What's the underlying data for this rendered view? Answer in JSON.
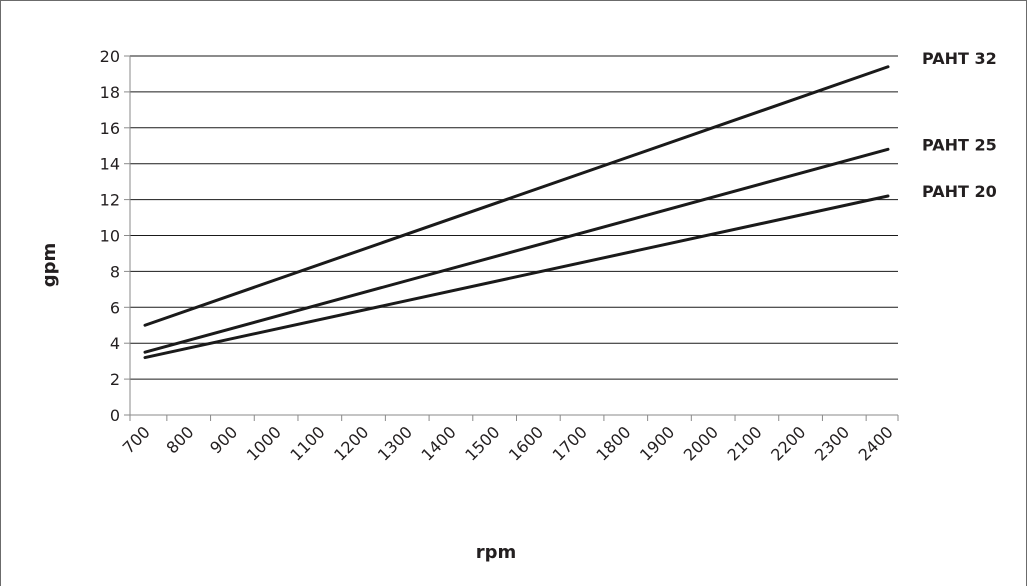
{
  "chart_data": {
    "type": "line",
    "xlabel": "rpm",
    "ylabel": "gpm",
    "x_categories": [
      "700",
      "800",
      "900",
      "1000",
      "1100",
      "1200",
      "1300",
      "1400",
      "1500",
      "1600",
      "1700",
      "1800",
      "1900",
      "2000",
      "2100",
      "2200",
      "2300",
      "2400"
    ],
    "xlim": [
      700,
      2400
    ],
    "ylim": [
      0,
      20
    ],
    "y_ticks": [
      "0",
      "2",
      "4",
      "6",
      "8",
      "10",
      "12",
      "14",
      "16",
      "18",
      "20"
    ],
    "grid": "horizontal",
    "legend": "direct labels at right",
    "series": [
      {
        "name": "PAHT 32",
        "x": [
          700,
          2400
        ],
        "y": [
          5.0,
          19.4
        ]
      },
      {
        "name": "PAHT 25",
        "x": [
          700,
          2400
        ],
        "y": [
          3.5,
          14.8
        ]
      },
      {
        "name": "PAHT 20",
        "x": [
          700,
          2400
        ],
        "y": [
          3.2,
          12.2
        ]
      }
    ],
    "colors": {
      "line": "#1a1a1a",
      "grid": "#1a1a1a",
      "axis": "#8a8a8a"
    }
  }
}
